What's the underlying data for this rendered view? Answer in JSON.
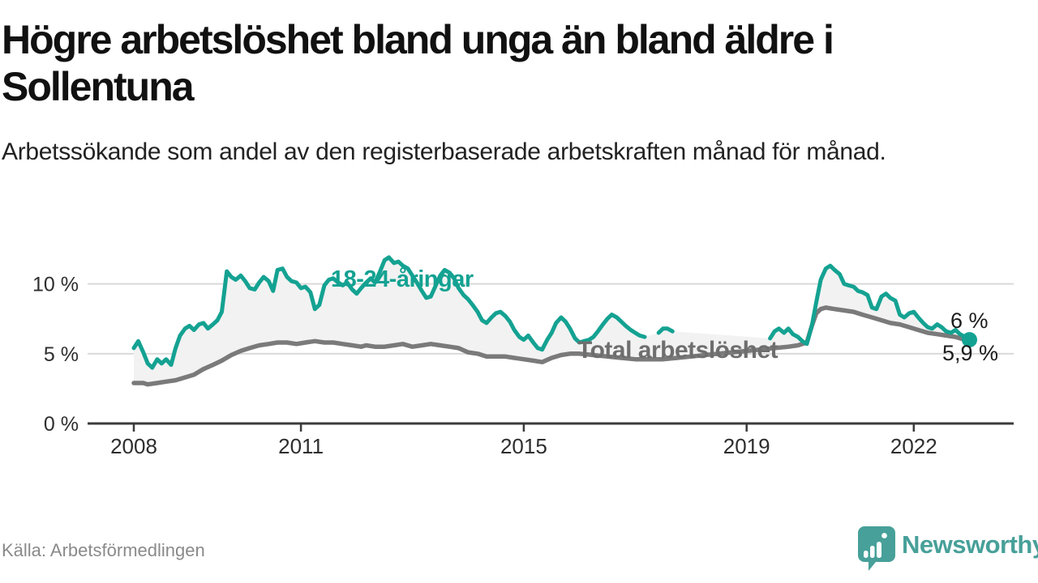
{
  "header": {
    "title": "Högre arbetslöshet bland unga än bland äldre i Sollentuna",
    "subtitle": "Arbetssökande som andel av den registerbaserade arbetskraften månad för månad."
  },
  "footer": {
    "source": "Källa: Arbetsförmedlingen",
    "brand": "Newsworthy"
  },
  "colors": {
    "accent_teal": "#14a292",
    "line_gray": "#7a7a7a",
    "area_fill": "#f2f2f2",
    "gridline": "#d9d9d9",
    "axis": "#3b3b3b",
    "tick_text": "#2e2e2e",
    "logo_teal": "#47a099"
  },
  "chart_data": {
    "type": "line",
    "title": "Högre arbetslöshet bland unga än bland äldre i Sollentuna",
    "subtitle": "Arbetssökande som andel av den registerbaserade arbetskraften månad för månad.",
    "unit": "%",
    "xlim": [
      2007.2,
      2023.8
    ],
    "ylim": [
      0,
      12.5
    ],
    "grid": true,
    "legend_position": "inline-labels",
    "x_ticks": [
      2008,
      2011,
      2015,
      2019,
      2022
    ],
    "y_ticks": [
      {
        "value": 0,
        "label": "0 %"
      },
      {
        "value": 5,
        "label": "5 %"
      },
      {
        "value": 10,
        "label": "10 %"
      }
    ],
    "series": [
      {
        "name": "18-24-åringar",
        "color": "#14a292",
        "end_label": "6 %",
        "end_dot": true,
        "note": "line has data gaps 2017–2019",
        "segments": [
          [
            [
              2008.0,
              5.4
            ],
            [
              2008.08,
              5.9
            ],
            [
              2008.17,
              5.1
            ],
            [
              2008.25,
              4.3
            ],
            [
              2008.33,
              4.0
            ],
            [
              2008.42,
              4.6
            ],
            [
              2008.5,
              4.3
            ],
            [
              2008.58,
              4.6
            ],
            [
              2008.67,
              4.2
            ],
            [
              2008.75,
              5.4
            ],
            [
              2008.83,
              6.3
            ],
            [
              2008.92,
              6.8
            ],
            [
              2009.0,
              7.0
            ],
            [
              2009.08,
              6.7
            ],
            [
              2009.17,
              7.1
            ],
            [
              2009.25,
              7.2
            ],
            [
              2009.33,
              6.8
            ],
            [
              2009.42,
              7.1
            ],
            [
              2009.5,
              7.4
            ],
            [
              2009.58,
              8.0
            ],
            [
              2009.67,
              10.9
            ],
            [
              2009.75,
              10.5
            ],
            [
              2009.83,
              10.3
            ],
            [
              2009.92,
              10.6
            ],
            [
              2010.0,
              10.2
            ],
            [
              2010.08,
              9.7
            ],
            [
              2010.17,
              9.6
            ],
            [
              2010.25,
              10.1
            ],
            [
              2010.33,
              10.5
            ],
            [
              2010.42,
              10.2
            ],
            [
              2010.5,
              9.5
            ],
            [
              2010.58,
              11.0
            ],
            [
              2010.67,
              11.1
            ],
            [
              2010.75,
              10.5
            ],
            [
              2010.83,
              10.2
            ],
            [
              2010.92,
              10.1
            ],
            [
              2011.0,
              9.7
            ],
            [
              2011.08,
              9.8
            ],
            [
              2011.17,
              9.4
            ],
            [
              2011.25,
              8.2
            ],
            [
              2011.33,
              8.5
            ],
            [
              2011.42,
              9.9
            ],
            [
              2011.5,
              10.3
            ],
            [
              2011.58,
              10.4
            ],
            [
              2011.67,
              10.1
            ],
            [
              2011.75,
              9.9
            ],
            [
              2011.83,
              10.1
            ],
            [
              2011.92,
              9.6
            ],
            [
              2012.0,
              9.3
            ],
            [
              2012.08,
              9.7
            ],
            [
              2012.17,
              10.1
            ],
            [
              2012.25,
              10.4
            ],
            [
              2012.33,
              10.1
            ],
            [
              2012.42,
              10.9
            ],
            [
              2012.5,
              11.7
            ],
            [
              2012.58,
              11.9
            ],
            [
              2012.67,
              11.5
            ],
            [
              2012.75,
              11.6
            ],
            [
              2012.83,
              11.3
            ],
            [
              2012.92,
              11.1
            ],
            [
              2013.0,
              10.6
            ],
            [
              2013.08,
              10.1
            ],
            [
              2013.17,
              9.5
            ],
            [
              2013.25,
              9.0
            ],
            [
              2013.33,
              9.1
            ],
            [
              2013.42,
              9.9
            ],
            [
              2013.5,
              10.6
            ],
            [
              2013.58,
              11.0
            ],
            [
              2013.67,
              10.8
            ],
            [
              2013.75,
              10.4
            ],
            [
              2013.83,
              9.7
            ],
            [
              2013.92,
              9.2
            ],
            [
              2014.0,
              8.9
            ],
            [
              2014.08,
              8.5
            ],
            [
              2014.17,
              8.0
            ],
            [
              2014.25,
              7.4
            ],
            [
              2014.33,
              7.2
            ],
            [
              2014.42,
              7.6
            ],
            [
              2014.5,
              7.9
            ],
            [
              2014.58,
              8.0
            ],
            [
              2014.67,
              7.7
            ],
            [
              2014.75,
              7.3
            ],
            [
              2014.83,
              6.7
            ],
            [
              2014.92,
              6.2
            ],
            [
              2015.0,
              6.0
            ],
            [
              2015.08,
              6.3
            ],
            [
              2015.17,
              5.8
            ],
            [
              2015.25,
              5.4
            ],
            [
              2015.33,
              5.3
            ],
            [
              2015.42,
              6.0
            ],
            [
              2015.5,
              6.5
            ],
            [
              2015.58,
              7.2
            ],
            [
              2015.67,
              7.6
            ],
            [
              2015.75,
              7.3
            ],
            [
              2015.83,
              6.8
            ],
            [
              2015.92,
              6.1
            ],
            [
              2016.0,
              5.8
            ],
            [
              2016.08,
              5.9
            ],
            [
              2016.17,
              6.0
            ],
            [
              2016.25,
              6.2
            ],
            [
              2016.33,
              6.6
            ],
            [
              2016.42,
              7.1
            ],
            [
              2016.5,
              7.5
            ],
            [
              2016.58,
              7.8
            ],
            [
              2016.67,
              7.6
            ],
            [
              2016.75,
              7.3
            ],
            [
              2016.83,
              7.0
            ],
            [
              2016.92,
              6.7
            ],
            [
              2017.0,
              6.5
            ],
            [
              2017.08,
              6.3
            ],
            [
              2017.17,
              6.2
            ]
          ],
          [
            [
              2017.42,
              6.5
            ],
            [
              2017.5,
              6.8
            ],
            [
              2017.58,
              6.8
            ],
            [
              2017.67,
              6.6
            ]
          ],
          [
            [
              2019.42,
              6.1
            ],
            [
              2019.5,
              6.6
            ],
            [
              2019.58,
              6.8
            ],
            [
              2019.67,
              6.5
            ],
            [
              2019.75,
              6.8
            ],
            [
              2019.83,
              6.4
            ],
            [
              2019.92,
              6.2
            ],
            [
              2020.0,
              5.9
            ],
            [
              2020.08,
              5.7
            ],
            [
              2020.17,
              7.0
            ],
            [
              2020.25,
              8.7
            ],
            [
              2020.33,
              10.3
            ],
            [
              2020.42,
              11.1
            ],
            [
              2020.5,
              11.3
            ],
            [
              2020.58,
              11.0
            ],
            [
              2020.67,
              10.7
            ],
            [
              2020.75,
              10.0
            ],
            [
              2020.83,
              9.9
            ],
            [
              2020.92,
              9.8
            ],
            [
              2021.0,
              9.5
            ],
            [
              2021.08,
              9.4
            ],
            [
              2021.17,
              9.2
            ],
            [
              2021.25,
              8.3
            ],
            [
              2021.33,
              8.2
            ],
            [
              2021.42,
              9.1
            ],
            [
              2021.5,
              9.3
            ],
            [
              2021.58,
              9.0
            ],
            [
              2021.67,
              8.8
            ],
            [
              2021.75,
              7.8
            ],
            [
              2021.83,
              7.6
            ],
            [
              2021.92,
              7.9
            ],
            [
              2022.0,
              8.0
            ],
            [
              2022.08,
              7.6
            ],
            [
              2022.17,
              7.2
            ],
            [
              2022.25,
              6.9
            ],
            [
              2022.33,
              6.8
            ],
            [
              2022.42,
              7.1
            ],
            [
              2022.5,
              6.9
            ],
            [
              2022.58,
              6.6
            ],
            [
              2022.67,
              6.5
            ],
            [
              2022.75,
              6.7
            ],
            [
              2022.83,
              6.4
            ],
            [
              2022.92,
              6.2
            ],
            [
              2023.0,
              6.0
            ]
          ]
        ]
      },
      {
        "name": "Total arbetslöshet",
        "color": "#7a7a7a",
        "end_label": "5,9 %",
        "end_dot": false,
        "segments": [
          [
            [
              2008.0,
              2.9
            ],
            [
              2008.17,
              2.9
            ],
            [
              2008.25,
              2.8
            ],
            [
              2008.42,
              2.9
            ],
            [
              2008.58,
              3.0
            ],
            [
              2008.75,
              3.1
            ],
            [
              2008.92,
              3.3
            ],
            [
              2009.08,
              3.5
            ],
            [
              2009.25,
              3.9
            ],
            [
              2009.42,
              4.2
            ],
            [
              2009.58,
              4.5
            ],
            [
              2009.75,
              4.9
            ],
            [
              2009.92,
              5.2
            ],
            [
              2010.08,
              5.4
            ],
            [
              2010.25,
              5.6
            ],
            [
              2010.42,
              5.7
            ],
            [
              2010.58,
              5.8
            ],
            [
              2010.75,
              5.8
            ],
            [
              2010.92,
              5.7
            ],
            [
              2011.08,
              5.8
            ],
            [
              2011.25,
              5.9
            ],
            [
              2011.42,
              5.8
            ],
            [
              2011.58,
              5.8
            ],
            [
              2011.75,
              5.7
            ],
            [
              2011.92,
              5.6
            ],
            [
              2012.08,
              5.5
            ],
            [
              2012.17,
              5.6
            ],
            [
              2012.33,
              5.5
            ],
            [
              2012.5,
              5.5
            ],
            [
              2012.67,
              5.6
            ],
            [
              2012.83,
              5.7
            ],
            [
              2013.0,
              5.5
            ],
            [
              2013.17,
              5.6
            ],
            [
              2013.33,
              5.7
            ],
            [
              2013.5,
              5.6
            ],
            [
              2013.67,
              5.5
            ],
            [
              2013.83,
              5.4
            ],
            [
              2014.0,
              5.1
            ],
            [
              2014.17,
              5.0
            ],
            [
              2014.33,
              4.8
            ],
            [
              2014.5,
              4.8
            ],
            [
              2014.67,
              4.8
            ],
            [
              2014.83,
              4.7
            ],
            [
              2015.0,
              4.6
            ],
            [
              2015.17,
              4.5
            ],
            [
              2015.33,
              4.4
            ],
            [
              2015.5,
              4.7
            ],
            [
              2015.67,
              4.9
            ],
            [
              2015.83,
              5.0
            ],
            [
              2016.0,
              5.0
            ],
            [
              2016.25,
              4.9
            ],
            [
              2016.5,
              4.8
            ],
            [
              2016.75,
              4.7
            ],
            [
              2017.0,
              4.6
            ],
            [
              2017.25,
              4.6
            ],
            [
              2017.5,
              4.6
            ],
            [
              2017.75,
              4.7
            ],
            [
              2018.0,
              4.8
            ],
            [
              2018.25,
              4.9
            ],
            [
              2018.5,
              5.0
            ],
            [
              2018.75,
              5.1
            ],
            [
              2019.0,
              5.2
            ],
            [
              2019.25,
              5.3
            ],
            [
              2019.5,
              5.4
            ],
            [
              2019.75,
              5.5
            ],
            [
              2019.92,
              5.6
            ],
            [
              2020.08,
              5.8
            ],
            [
              2020.17,
              7.0
            ],
            [
              2020.25,
              7.9
            ],
            [
              2020.33,
              8.2
            ],
            [
              2020.42,
              8.3
            ],
            [
              2020.58,
              8.2
            ],
            [
              2020.75,
              8.1
            ],
            [
              2020.92,
              8.0
            ],
            [
              2021.08,
              7.8
            ],
            [
              2021.25,
              7.6
            ],
            [
              2021.42,
              7.4
            ],
            [
              2021.58,
              7.2
            ],
            [
              2021.75,
              7.1
            ],
            [
              2021.92,
              6.9
            ],
            [
              2022.08,
              6.7
            ],
            [
              2022.25,
              6.5
            ],
            [
              2022.42,
              6.4
            ],
            [
              2022.58,
              6.3
            ],
            [
              2022.75,
              6.2
            ],
            [
              2022.92,
              6.0
            ],
            [
              2023.0,
              5.9
            ]
          ]
        ]
      }
    ]
  }
}
